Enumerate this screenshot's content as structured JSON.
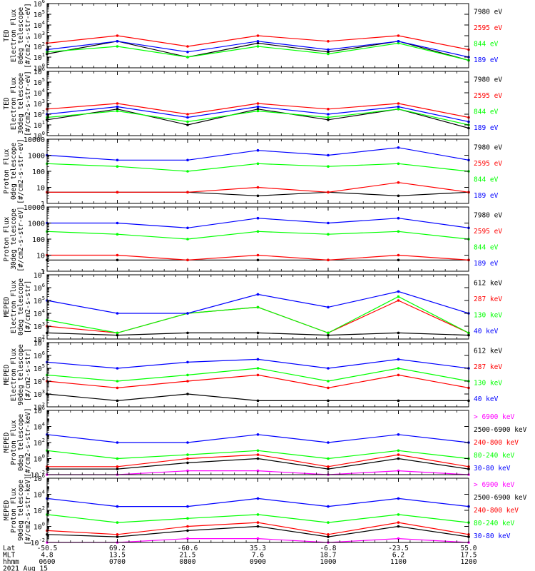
{
  "figure": {
    "date": "2021 Aug 15",
    "axis_rows": [
      {
        "name": "Lat",
        "values": [
          "-50.5",
          "69.2",
          "-60.6",
          "35.3",
          "-6.8",
          "-23.5",
          "55.0"
        ]
      },
      {
        "name": "MLT",
        "values": [
          "4.8",
          "13.5",
          "21.5",
          "7.6",
          "18.7",
          "6.2",
          "17.5"
        ]
      },
      {
        "name": "hhmm",
        "values": [
          "0600",
          "0700",
          "0800",
          "0900",
          "1000",
          "1100",
          "1200"
        ]
      }
    ],
    "colors": {
      "blue": "#0000ff",
      "red": "#ff0000",
      "green": "#00ff00",
      "black": "#000000",
      "magenta": "#ff00ff"
    }
  },
  "chart_data": [
    {
      "type": "line",
      "title": "",
      "ylabel_lines": [
        "TED",
        "Electron Flux",
        "0deg telescope",
        "[#/cm2-s-str-eV]"
      ],
      "yscale": "log",
      "ylim": [
        1,
        1000000
      ],
      "yticks": [
        {
          "label": "10",
          "exp": "0",
          "v": 1
        },
        {
          "label": "10",
          "exp": "1",
          "v": 10
        },
        {
          "label": "10",
          "exp": "2",
          "v": 100
        },
        {
          "label": "10",
          "exp": "3",
          "v": 1000
        },
        {
          "label": "10",
          "exp": "4",
          "v": 10000
        },
        {
          "label": "10",
          "exp": "5",
          "v": 100000
        },
        {
          "label": "10",
          "exp": "6",
          "v": 1000000
        }
      ],
      "x": [
        "0600",
        "0700",
        "0800",
        "0900",
        "1000",
        "1100",
        "1200"
      ],
      "series": [
        {
          "name": "7980 eV",
          "color": "#000000",
          "values": [
            20,
            300,
            10,
            200,
            30,
            300,
            5
          ]
        },
        {
          "name": "2595 eV",
          "color": "#ff0000",
          "values": [
            200,
            1000,
            100,
            1000,
            300,
            1000,
            50
          ]
        },
        {
          "name": "844 eV",
          "color": "#00ff00",
          "values": [
            30,
            100,
            10,
            100,
            20,
            200,
            5
          ]
        },
        {
          "name": "189 eV",
          "color": "#0000ff",
          "values": [
            50,
            300,
            30,
            300,
            50,
            300,
            10
          ]
        }
      ]
    },
    {
      "type": "line",
      "title": "",
      "ylabel_lines": [
        "TED",
        "Electron Flux",
        "30deg telescope",
        "[#/cm2-s-str-eV]"
      ],
      "yscale": "log",
      "ylim": [
        1,
        1000000
      ],
      "yticks": [
        {
          "label": "10",
          "exp": "0",
          "v": 1
        },
        {
          "label": "10",
          "exp": "1",
          "v": 10
        },
        {
          "label": "10",
          "exp": "2",
          "v": 100
        },
        {
          "label": "10",
          "exp": "3",
          "v": 1000
        },
        {
          "label": "10",
          "exp": "4",
          "v": 10000
        },
        {
          "label": "10",
          "exp": "5",
          "v": 100000
        },
        {
          "label": "10",
          "exp": "6",
          "v": 1000000
        }
      ],
      "x": [
        "0600",
        "0700",
        "0800",
        "0900",
        "1000",
        "1100",
        "1200"
      ],
      "series": [
        {
          "name": "7980 eV",
          "color": "#000000",
          "values": [
            30,
            300,
            10,
            300,
            30,
            300,
            5
          ]
        },
        {
          "name": "2595 eV",
          "color": "#ff0000",
          "values": [
            300,
            1000,
            100,
            1000,
            300,
            1000,
            50
          ]
        },
        {
          "name": "844 eV",
          "color": "#00ff00",
          "values": [
            50,
            200,
            20,
            200,
            50,
            300,
            10
          ]
        },
        {
          "name": "189 eV",
          "color": "#0000ff",
          "values": [
            100,
            500,
            50,
            500,
            100,
            500,
            20
          ]
        }
      ]
    },
    {
      "type": "line",
      "title": "",
      "ylabel_lines": [
        "Proton Flux",
        "0deg telescope",
        "[#/cm2-s-str-eV]"
      ],
      "yscale": "log",
      "ylim": [
        1,
        10000
      ],
      "yticks": [
        {
          "label": "1",
          "exp": "",
          "v": 1
        },
        {
          "label": "10",
          "exp": "",
          "v": 10
        },
        {
          "label": "100",
          "exp": "",
          "v": 100
        },
        {
          "label": "1000",
          "exp": "",
          "v": 1000
        },
        {
          "label": "10000",
          "exp": "",
          "v": 10000
        }
      ],
      "x": [
        "0600",
        "0700",
        "0800",
        "0900",
        "1000",
        "1100",
        "1200"
      ],
      "series": [
        {
          "name": "7980 eV",
          "color": "#000000",
          "values": [
            5,
            5,
            5,
            3,
            5,
            3,
            5
          ]
        },
        {
          "name": "2595 eV",
          "color": "#ff0000",
          "values": [
            5,
            5,
            5,
            10,
            5,
            20,
            5
          ]
        },
        {
          "name": "844 eV",
          "color": "#00ff00",
          "values": [
            300,
            200,
            100,
            300,
            200,
            300,
            100
          ]
        },
        {
          "name": "189 eV",
          "color": "#0000ff",
          "values": [
            1000,
            500,
            500,
            2000,
            1000,
            3000,
            500
          ]
        }
      ]
    },
    {
      "type": "line",
      "title": "",
      "ylabel_lines": [
        "Proton Flux",
        "30deg telescope",
        "[#/cm2-s-str-eV]"
      ],
      "yscale": "log",
      "ylim": [
        1,
        10000
      ],
      "yticks": [
        {
          "label": "1",
          "exp": "",
          "v": 1
        },
        {
          "label": "10",
          "exp": "",
          "v": 10
        },
        {
          "label": "100",
          "exp": "",
          "v": 100
        },
        {
          "label": "1000",
          "exp": "",
          "v": 1000
        },
        {
          "label": "10000",
          "exp": "",
          "v": 10000
        }
      ],
      "x": [
        "0600",
        "0700",
        "0800",
        "0900",
        "1000",
        "1100",
        "1200"
      ],
      "series": [
        {
          "name": "7980 eV",
          "color": "#000000",
          "values": [
            5,
            5,
            5,
            5,
            5,
            5,
            5
          ]
        },
        {
          "name": "2595 eV",
          "color": "#ff0000",
          "values": [
            10,
            10,
            5,
            10,
            5,
            10,
            5
          ]
        },
        {
          "name": "844 eV",
          "color": "#00ff00",
          "values": [
            300,
            200,
            100,
            300,
            200,
            300,
            100
          ]
        },
        {
          "name": "189 eV",
          "color": "#0000ff",
          "values": [
            1000,
            1000,
            500,
            2000,
            1000,
            2000,
            500
          ]
        }
      ]
    },
    {
      "type": "line",
      "title": "",
      "ylabel_lines": [
        "MEPED",
        "Electron Flux",
        "0deg telescope",
        "[#/cm2-s-str]"
      ],
      "yscale": "log",
      "ylim": [
        100,
        10000000
      ],
      "yticks": [
        {
          "label": "10",
          "exp": "2",
          "v": 100
        },
        {
          "label": "10",
          "exp": "3",
          "v": 1000
        },
        {
          "label": "10",
          "exp": "4",
          "v": 10000
        },
        {
          "label": "10",
          "exp": "5",
          "v": 100000
        },
        {
          "label": "10",
          "exp": "6",
          "v": 1000000
        },
        {
          "label": "10",
          "exp": "7",
          "v": 10000000
        }
      ],
      "x": [
        "0600",
        "0700",
        "0800",
        "0900",
        "1000",
        "1100",
        "1200"
      ],
      "series": [
        {
          "name": "612 keV",
          "color": "#000000",
          "values": [
            300,
            200,
            300,
            300,
            200,
            300,
            200
          ]
        },
        {
          "name": "287 keV",
          "color": "#ff0000",
          "values": [
            1000,
            300,
            10000,
            30000,
            300,
            100000,
            300
          ]
        },
        {
          "name": "130 keV",
          "color": "#00ff00",
          "values": [
            3000,
            300,
            10000,
            30000,
            300,
            200000,
            300
          ]
        },
        {
          "name": "40 keV",
          "color": "#0000ff",
          "values": [
            100000,
            10000,
            10000,
            300000,
            30000,
            500000,
            10000
          ]
        }
      ]
    },
    {
      "type": "line",
      "title": "",
      "ylabel_lines": [
        "MEPED",
        "Electron Flux",
        "90deg telescope",
        "[#/cm2-s-str]"
      ],
      "yscale": "log",
      "ylim": [
        100,
        10000000
      ],
      "yticks": [
        {
          "label": "10",
          "exp": "2",
          "v": 100
        },
        {
          "label": "10",
          "exp": "3",
          "v": 1000
        },
        {
          "label": "10",
          "exp": "4",
          "v": 10000
        },
        {
          "label": "10",
          "exp": "5",
          "v": 100000
        },
        {
          "label": "10",
          "exp": "6",
          "v": 1000000
        },
        {
          "label": "10",
          "exp": "7",
          "v": 10000000
        }
      ],
      "x": [
        "0600",
        "0700",
        "0800",
        "0900",
        "1000",
        "1100",
        "1200"
      ],
      "series": [
        {
          "name": "612 keV",
          "color": "#000000",
          "values": [
            1000,
            300,
            1000,
            300,
            300,
            300,
            300
          ]
        },
        {
          "name": "287 keV",
          "color": "#ff0000",
          "values": [
            10000,
            3000,
            10000,
            30000,
            3000,
            30000,
            3000
          ]
        },
        {
          "name": "130 keV",
          "color": "#00ff00",
          "values": [
            30000,
            10000,
            30000,
            100000,
            10000,
            100000,
            10000
          ]
        },
        {
          "name": "40 keV",
          "color": "#0000ff",
          "values": [
            300000,
            100000,
            300000,
            500000,
            100000,
            500000,
            100000
          ]
        }
      ]
    },
    {
      "type": "line",
      "title": "",
      "ylabel_lines": [
        "MEPED",
        "Proton Flux",
        "0deg telescope",
        "[#/cm2-s-str-keV]"
      ],
      "yscale": "log",
      "ylim": [
        0.01,
        1000000
      ],
      "yticks": [
        {
          "label": "10",
          "exp": "-2",
          "v": 0.01
        },
        {
          "label": "10",
          "exp": "0",
          "v": 1
        },
        {
          "label": "10",
          "exp": "2",
          "v": 100
        },
        {
          "label": "10",
          "exp": "4",
          "v": 10000
        },
        {
          "label": "10",
          "exp": "6",
          "v": 1000000
        }
      ],
      "x": [
        "0600",
        "0700",
        "0800",
        "0900",
        "1000",
        "1100",
        "1200"
      ],
      "series": [
        {
          "name": "> 6900 keV",
          "color": "#ff00ff",
          "values": [
            0.01,
            0.01,
            0.03,
            0.03,
            0.01,
            0.03,
            0.01
          ]
        },
        {
          "name": "2500-6900 keV",
          "color": "#000000",
          "values": [
            0.05,
            0.05,
            0.3,
            1,
            0.05,
            1,
            0.05
          ]
        },
        {
          "name": "240-800 keV",
          "color": "#ff0000",
          "values": [
            0.1,
            0.1,
            1,
            3,
            0.1,
            3,
            0.1
          ]
        },
        {
          "name": "80-240 keV",
          "color": "#00ff00",
          "values": [
            10,
            1,
            3,
            10,
            1,
            10,
            1
          ]
        },
        {
          "name": "30-80 keV",
          "color": "#0000ff",
          "values": [
            1000,
            100,
            100,
            1000,
            100,
            1000,
            100
          ]
        }
      ]
    },
    {
      "type": "line",
      "title": "",
      "ylabel_lines": [
        "MEPED",
        "Proton Flux",
        "90deg telescope",
        "[#/cm2-s-str-keV]"
      ],
      "yscale": "log",
      "ylim": [
        0.01,
        1000000
      ],
      "yticks": [
        {
          "label": "10",
          "exp": "-2",
          "v": 0.01
        },
        {
          "label": "10",
          "exp": "0",
          "v": 1
        },
        {
          "label": "10",
          "exp": "2",
          "v": 100
        },
        {
          "label": "10",
          "exp": "4",
          "v": 10000
        },
        {
          "label": "10",
          "exp": "6",
          "v": 1000000
        }
      ],
      "x": [
        "0600",
        "0700",
        "0800",
        "0900",
        "1000",
        "1100",
        "1200"
      ],
      "series": [
        {
          "name": "> 6900 keV",
          "color": "#ff00ff",
          "values": [
            0.01,
            0.01,
            0.03,
            0.03,
            0.01,
            0.03,
            0.01
          ]
        },
        {
          "name": "2500-6900 keV",
          "color": "#000000",
          "values": [
            0.1,
            0.05,
            0.3,
            1,
            0.05,
            1,
            0.05
          ]
        },
        {
          "name": "240-800 keV",
          "color": "#ff0000",
          "values": [
            0.3,
            0.1,
            1,
            3,
            0.1,
            3,
            0.1
          ]
        },
        {
          "name": "80-240 keV",
          "color": "#00ff00",
          "values": [
            30,
            3,
            10,
            30,
            3,
            30,
            3
          ]
        },
        {
          "name": "30-80 keV",
          "color": "#0000ff",
          "values": [
            3000,
            300,
            300,
            3000,
            300,
            3000,
            300
          ]
        }
      ]
    }
  ]
}
